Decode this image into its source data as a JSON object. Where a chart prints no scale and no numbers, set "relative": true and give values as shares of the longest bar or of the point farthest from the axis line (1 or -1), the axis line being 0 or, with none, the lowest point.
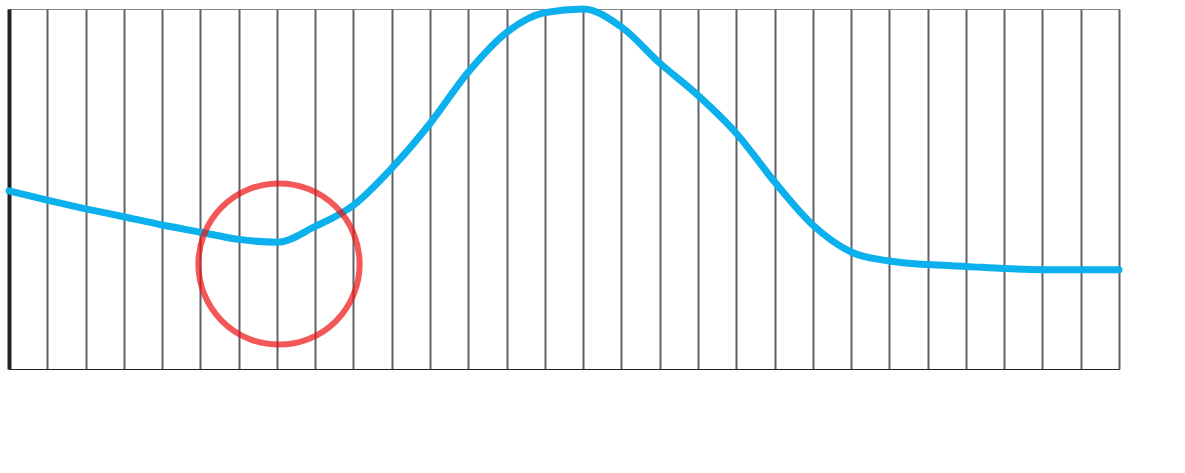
{
  "chart_data": {
    "type": "line",
    "relative": true,
    "color": "#0bb0ec",
    "grid": "x",
    "marker": "none",
    "line_style": "solid",
    "categories": [
      null,
      null,
      null,
      null,
      null,
      null,
      null,
      null,
      null,
      null,
      null,
      null,
      null,
      null,
      null,
      null,
      null,
      null,
      null,
      null,
      null,
      null,
      null,
      null,
      null,
      null,
      null,
      null,
      null,
      null
    ],
    "values": [
      0.495,
      0.469,
      0.445,
      0.423,
      0.4,
      0.38,
      0.36,
      0.352,
      0.396,
      0.455,
      0.558,
      0.682,
      0.825,
      0.935,
      0.99,
      1.0,
      0.95,
      0.85,
      0.76,
      0.655,
      0.52,
      0.4,
      0.325,
      0.3,
      0.29,
      0.285,
      0.279,
      0.276,
      0.276,
      0.276
    ]
  }
}
